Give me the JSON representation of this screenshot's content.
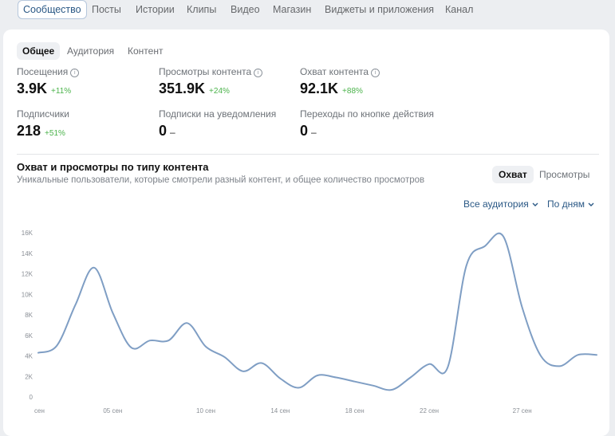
{
  "nav": {
    "tabs": [
      {
        "label": "Сообщество",
        "active": true
      },
      {
        "label": "Посты"
      },
      {
        "label": "Истории"
      },
      {
        "label": "Клипы"
      },
      {
        "label": "Видео"
      },
      {
        "label": "Магазин"
      },
      {
        "label": "Виджеты и приложения"
      },
      {
        "label": "Канал"
      }
    ]
  },
  "subtabs": [
    {
      "label": "Общее",
      "active": true
    },
    {
      "label": "Аудитория"
    },
    {
      "label": "Контент"
    }
  ],
  "metrics": [
    {
      "label": "Посещения",
      "value": "3.9K",
      "delta": "+11%",
      "info": true
    },
    {
      "label": "Просмотры контента",
      "value": "351.9K",
      "delta": "+24%",
      "info": true
    },
    {
      "label": "Охват контента",
      "value": "92.1K",
      "delta": "+88%",
      "info": true
    },
    {
      "label": "Подписчики",
      "value": "218",
      "delta": "+51%",
      "info": false
    },
    {
      "label": "Подписки на уведомления",
      "value": "0",
      "delta": "–",
      "info": false
    },
    {
      "label": "Переходы по кнопке действия",
      "value": "0",
      "delta": "–",
      "info": false
    }
  ],
  "section": {
    "title": "Охват и просмотры по типу контента",
    "subtitle": "Уникальные пользователи, которые смотрели разный контент, и общее количество просмотров",
    "toggle_reach": "Охват",
    "toggle_views": "Просмотры",
    "filter_audience": "Все аудитория",
    "filter_period": "По дням"
  },
  "colors": {
    "line": "#7f9ec4",
    "delta_positive": "#4bb34b",
    "link": "#2a5885"
  },
  "chart_data": {
    "type": "line",
    "title": "",
    "xlabel": "",
    "ylabel": "",
    "ylim": [
      0,
      16000
    ],
    "yticks": [
      "0",
      "2K",
      "4K",
      "6K",
      "8K",
      "10K",
      "12K",
      "14K",
      "16K"
    ],
    "xticks": [
      {
        "day": 0,
        "label": "сен"
      },
      {
        "day": 4,
        "label": "05 сен"
      },
      {
        "day": 9,
        "label": "10 сен"
      },
      {
        "day": 13,
        "label": "14 сен"
      },
      {
        "day": 17,
        "label": "18 сен"
      },
      {
        "day": 21,
        "label": "22 сен"
      },
      {
        "day": 26,
        "label": "27 сен"
      }
    ],
    "x_days": [
      0,
      1,
      2,
      3,
      4,
      5,
      6,
      7,
      8,
      9,
      10,
      11,
      12,
      13,
      14,
      15,
      16,
      17,
      18,
      19,
      20,
      21,
      22,
      23,
      24,
      25,
      26,
      27,
      28,
      29,
      30
    ],
    "series": [
      {
        "values": [
          4300,
          5000,
          9000,
          12600,
          8200,
          4800,
          5500,
          5500,
          7200,
          4900,
          3900,
          2500,
          3300,
          1800,
          900,
          2100,
          1900,
          1500,
          1100,
          700,
          1900,
          3200,
          2900,
          12800,
          14700,
          15600,
          8700,
          4000,
          3000,
          4100,
          4100
        ],
        "count_shown": 30
      }
    ],
    "grid": false,
    "legend": "none"
  }
}
